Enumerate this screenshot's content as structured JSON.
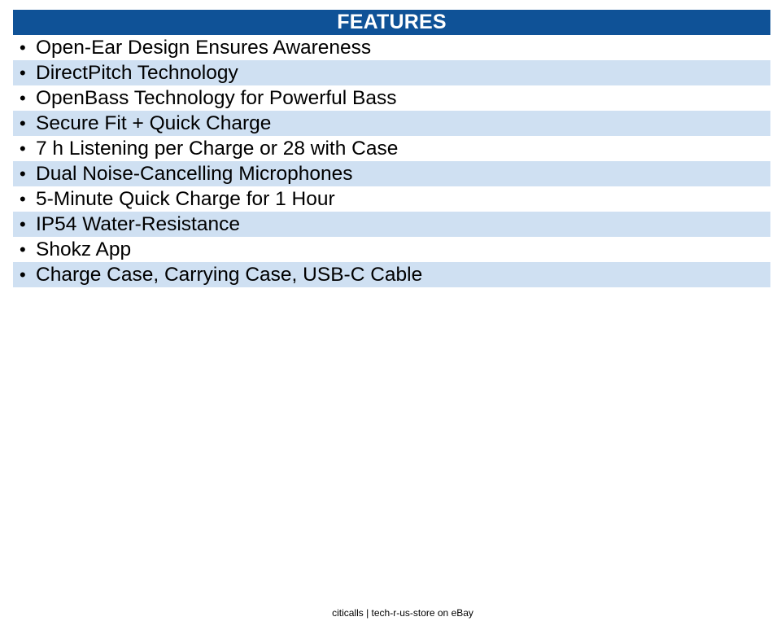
{
  "header": {
    "title": "FEATURES"
  },
  "features": [
    "Open-Ear Design Ensures Awareness",
    "DirectPitch Technology",
    "OpenBass Technology for Powerful Bass",
    "Secure Fit + Quick Charge",
    "7 h Listening per Charge or 28 with Case",
    "Dual Noise-Cancelling Microphones",
    "5-Minute Quick Charge for 1 Hour",
    "IP54 Water-Resistance",
    "Shokz App",
    "Charge Case, Carrying Case, USB-C Cable"
  ],
  "bullet_symbol": "•",
  "footer": {
    "text": "citicalls | tech-r-us-store on eBay"
  },
  "colors": {
    "header_bg": "#0f5297",
    "stripe_bg": "#cfe0f2"
  }
}
